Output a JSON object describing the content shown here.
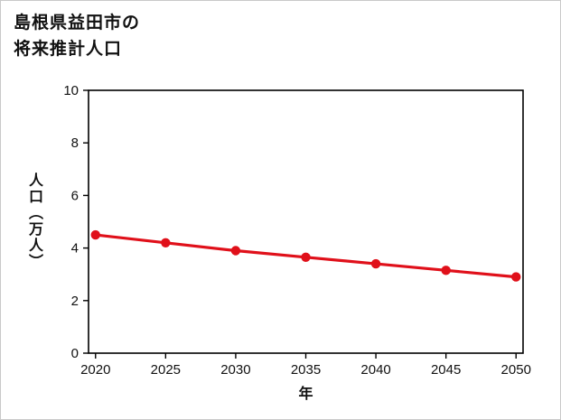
{
  "page": {
    "title_line1": "島根県益田市の",
    "title_line2": "将来推計人口"
  },
  "chart_data": {
    "type": "line",
    "title": "島根県益田市の将来推計人口",
    "x": [
      2020,
      2025,
      2030,
      2035,
      2040,
      2045,
      2050
    ],
    "values": [
      4.5,
      4.2,
      3.9,
      3.65,
      3.4,
      3.15,
      2.9
    ],
    "series_name": "将来推計人口",
    "xlabel": "年",
    "ylabel": "人口（万人）",
    "xlim": [
      2019.5,
      2050.5
    ],
    "ylim": [
      0,
      10
    ],
    "xticks": [
      2020,
      2025,
      2030,
      2035,
      2040,
      2045,
      2050
    ],
    "yticks": [
      0,
      2,
      4,
      6,
      8,
      10
    ],
    "grid": false,
    "legend": "none",
    "series_color": "#e0101a",
    "axis_color": "#000000"
  }
}
